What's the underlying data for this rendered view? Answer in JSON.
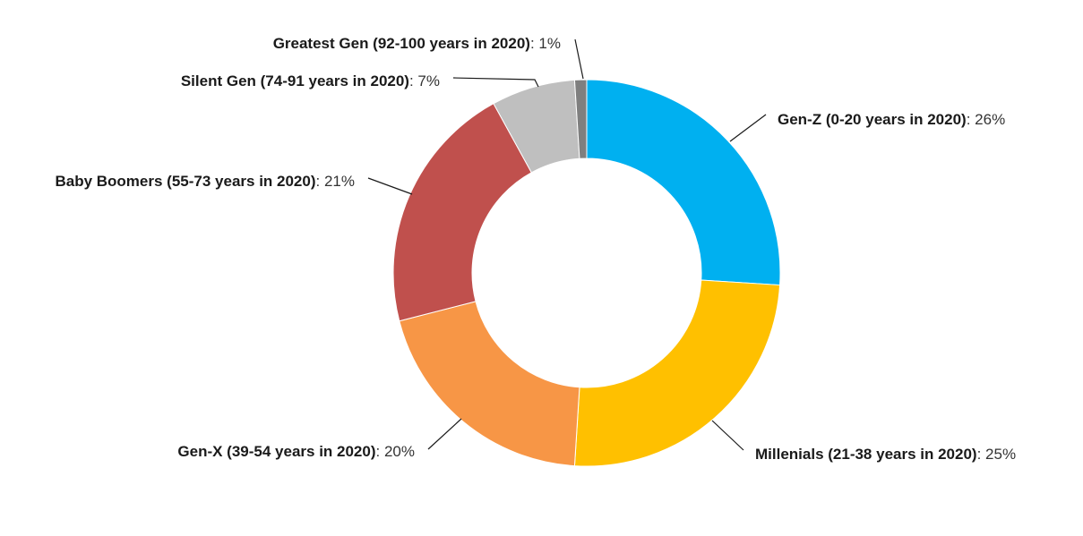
{
  "chart_data": {
    "type": "pie",
    "variant": "donut",
    "title": "",
    "legend": "none",
    "slices": [
      {
        "label": "Gen-Z (0-20 years in 2020)",
        "value": 26,
        "display": "26%",
        "color": "#00B0F0"
      },
      {
        "label": "Millenials (21-38 years in 2020)",
        "value": 25,
        "display": "25%",
        "color": "#FFC000"
      },
      {
        "label": "Gen-X (39-54 years in 2020)",
        "value": 20,
        "display": "20%",
        "color": "#F79646"
      },
      {
        "label": "Baby Boomers (55-73 years in 2020)",
        "value": 21,
        "display": "21%",
        "color": "#C0504D"
      },
      {
        "label": "Silent Gen (74-91 years in 2020)",
        "value": 7,
        "display": "7%",
        "color": "#BFBFBF"
      },
      {
        "label": "Greatest Gen (92-100 years in 2020)",
        "value": 1,
        "display": "1%",
        "color": "#7F7F7F"
      }
    ]
  }
}
